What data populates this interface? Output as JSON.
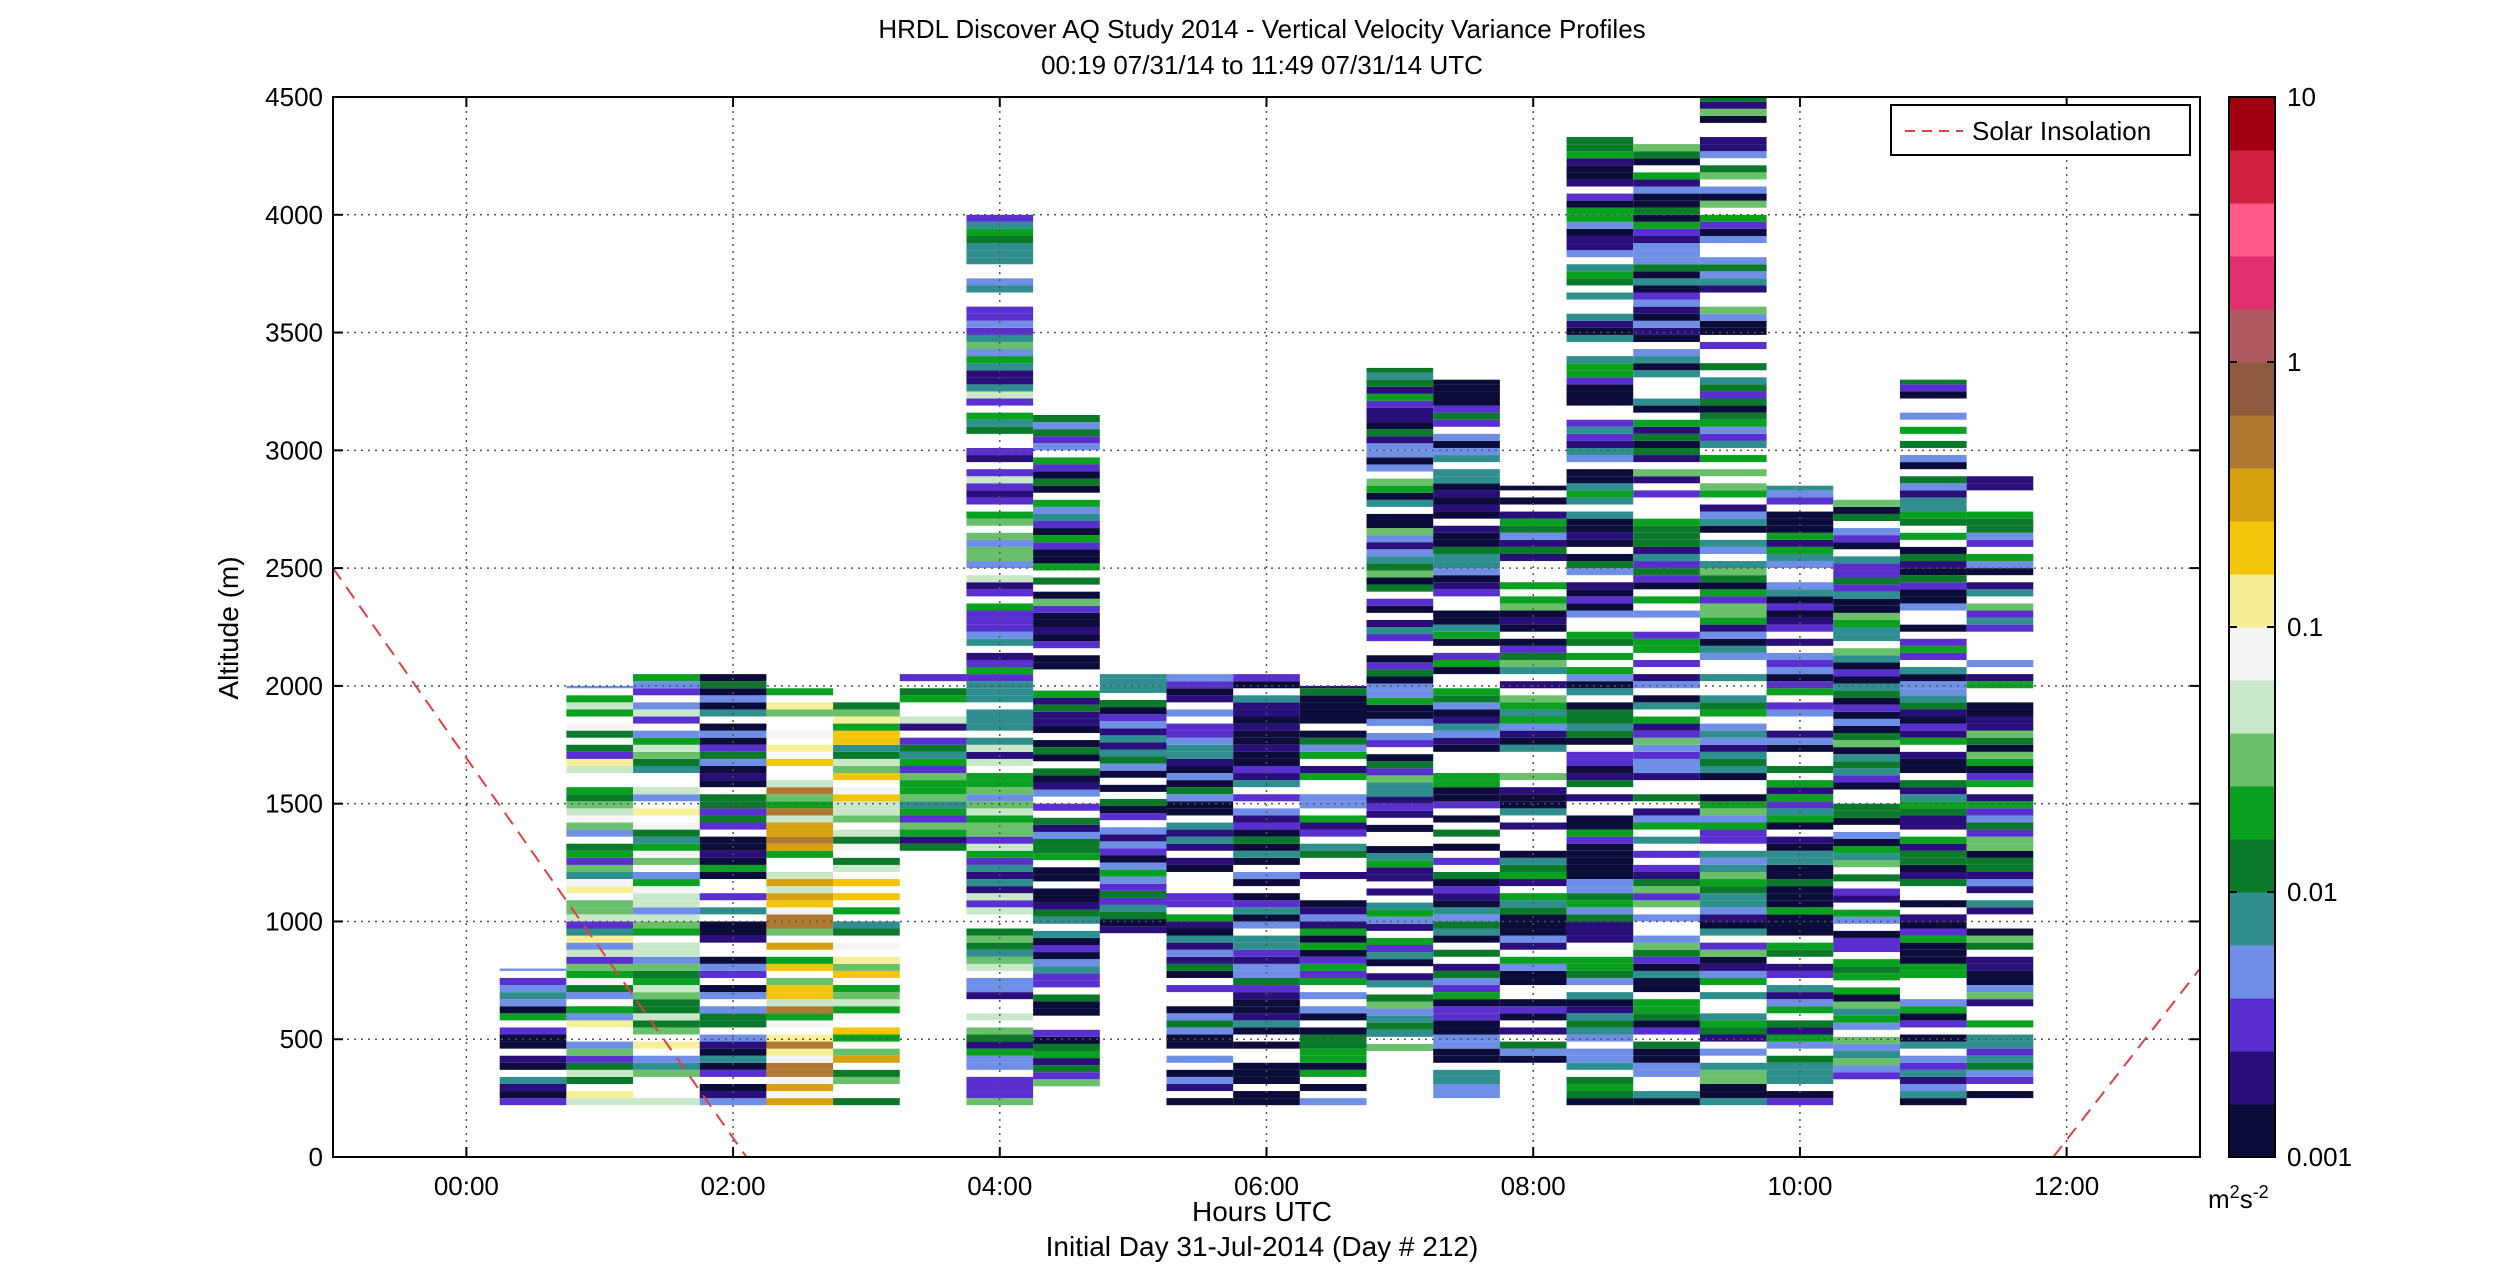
{
  "chart_data": {
    "type": "heatmap",
    "title": "HRDL Discover AQ Study 2014 - Vertical Velocity Variance Profiles",
    "subtitle": "00:19 07/31/14 to 11:49 07/31/14  UTC",
    "xlabel": "Hours UTC",
    "xlabel2": "Initial Day 31-Jul-2014 (Day # 212)",
    "ylabel": "Altitude (m)",
    "x_ticks": [
      "00:00",
      "02:00",
      "04:00",
      "06:00",
      "08:00",
      "10:00",
      "12:00"
    ],
    "x_tick_hours": [
      0,
      2,
      4,
      6,
      8,
      10,
      12
    ],
    "xlim_hours": [
      -1,
      13
    ],
    "y_ticks": [
      "0",
      "500",
      "1000",
      "1500",
      "2000",
      "2500",
      "3000",
      "3500",
      "4000",
      "4500"
    ],
    "ylim": [
      0,
      4500
    ],
    "grid": true,
    "legend_position": "top-right",
    "legend": [
      {
        "label": "Solar Insolation",
        "style": "dashed",
        "color": "#e04040"
      }
    ],
    "colorbar": {
      "scale": "log",
      "range": [
        0.001,
        10
      ],
      "tick_labels": [
        "0.001",
        "0.01",
        "0.1",
        "1",
        "10"
      ],
      "tick_values": [
        0.001,
        0.01,
        0.1,
        1,
        10
      ],
      "unit_base": "m",
      "unit_exp1": "2",
      "unit_mid": "s",
      "unit_exp2": "-2",
      "colors": [
        "#0c0c3a",
        "#2a0f7a",
        "#5a2fd0",
        "#6f8fe6",
        "#2f8f8f",
        "#0a7a2a",
        "#0aa020",
        "#6ac06a",
        "#c9e8c9",
        "#f5f5f5",
        "#f6ef98",
        "#f2c40a",
        "#d7a010",
        "#b07830",
        "#8f5a40",
        "#b05a60",
        "#e03070",
        "#ff5a8a",
        "#d02040",
        "#a00010"
      ]
    },
    "solar_insolation": {
      "x_hours": [
        -1,
        2.1,
        11.9,
        13
      ],
      "y": [
        2500,
        0,
        0,
        800
      ]
    },
    "profiles": [
      {
        "t": 0.5,
        "top": 800,
        "bottom": 220,
        "mean": 0.003
      },
      {
        "t": 1.0,
        "top": 2000,
        "bottom": 220,
        "mean": 0.02
      },
      {
        "t": 1.5,
        "top": 2050,
        "bottom": 220,
        "mean": 0.02
      },
      {
        "t": 2.0,
        "top": 2050,
        "bottom": 220,
        "mean": 0.003
      },
      {
        "t": 2.5,
        "top": 2000,
        "bottom": 220,
        "mean": 0.1
      },
      {
        "t": 3.0,
        "top": 2000,
        "bottom": 220,
        "mean": 0.05
      },
      {
        "t": 3.5,
        "top": 2050,
        "bottom": 1300,
        "mean": 0.01
      },
      {
        "t": 4.0,
        "top": 4000,
        "bottom": 220,
        "mean": 0.01
      },
      {
        "t": 4.5,
        "top": 3150,
        "bottom": 300,
        "mean": 0.005
      },
      {
        "t": 5.0,
        "top": 2050,
        "bottom": 950,
        "mean": 0.003
      },
      {
        "t": 5.5,
        "top": 2050,
        "bottom": 220,
        "mean": 0.003
      },
      {
        "t": 6.0,
        "top": 2050,
        "bottom": 220,
        "mean": 0.002
      },
      {
        "t": 6.5,
        "top": 2000,
        "bottom": 220,
        "mean": 0.004
      },
      {
        "t": 7.0,
        "top": 3350,
        "bottom": 450,
        "mean": 0.005
      },
      {
        "t": 7.5,
        "top": 3300,
        "bottom": 250,
        "mean": 0.004
      },
      {
        "t": 8.0,
        "top": 2850,
        "bottom": 400,
        "mean": 0.005
      },
      {
        "t": 8.5,
        "top": 4350,
        "bottom": 220,
        "mean": 0.004
      },
      {
        "t": 9.0,
        "top": 4300,
        "bottom": 220,
        "mean": 0.005
      },
      {
        "t": 9.5,
        "top": 4500,
        "bottom": 220,
        "mean": 0.006
      },
      {
        "t": 10.0,
        "top": 2850,
        "bottom": 220,
        "mean": 0.004
      },
      {
        "t": 10.5,
        "top": 2800,
        "bottom": 300,
        "mean": 0.005
      },
      {
        "t": 11.0,
        "top": 3300,
        "bottom": 220,
        "mean": 0.004
      },
      {
        "t": 11.5,
        "top": 2900,
        "bottom": 220,
        "mean": 0.006
      }
    ]
  }
}
